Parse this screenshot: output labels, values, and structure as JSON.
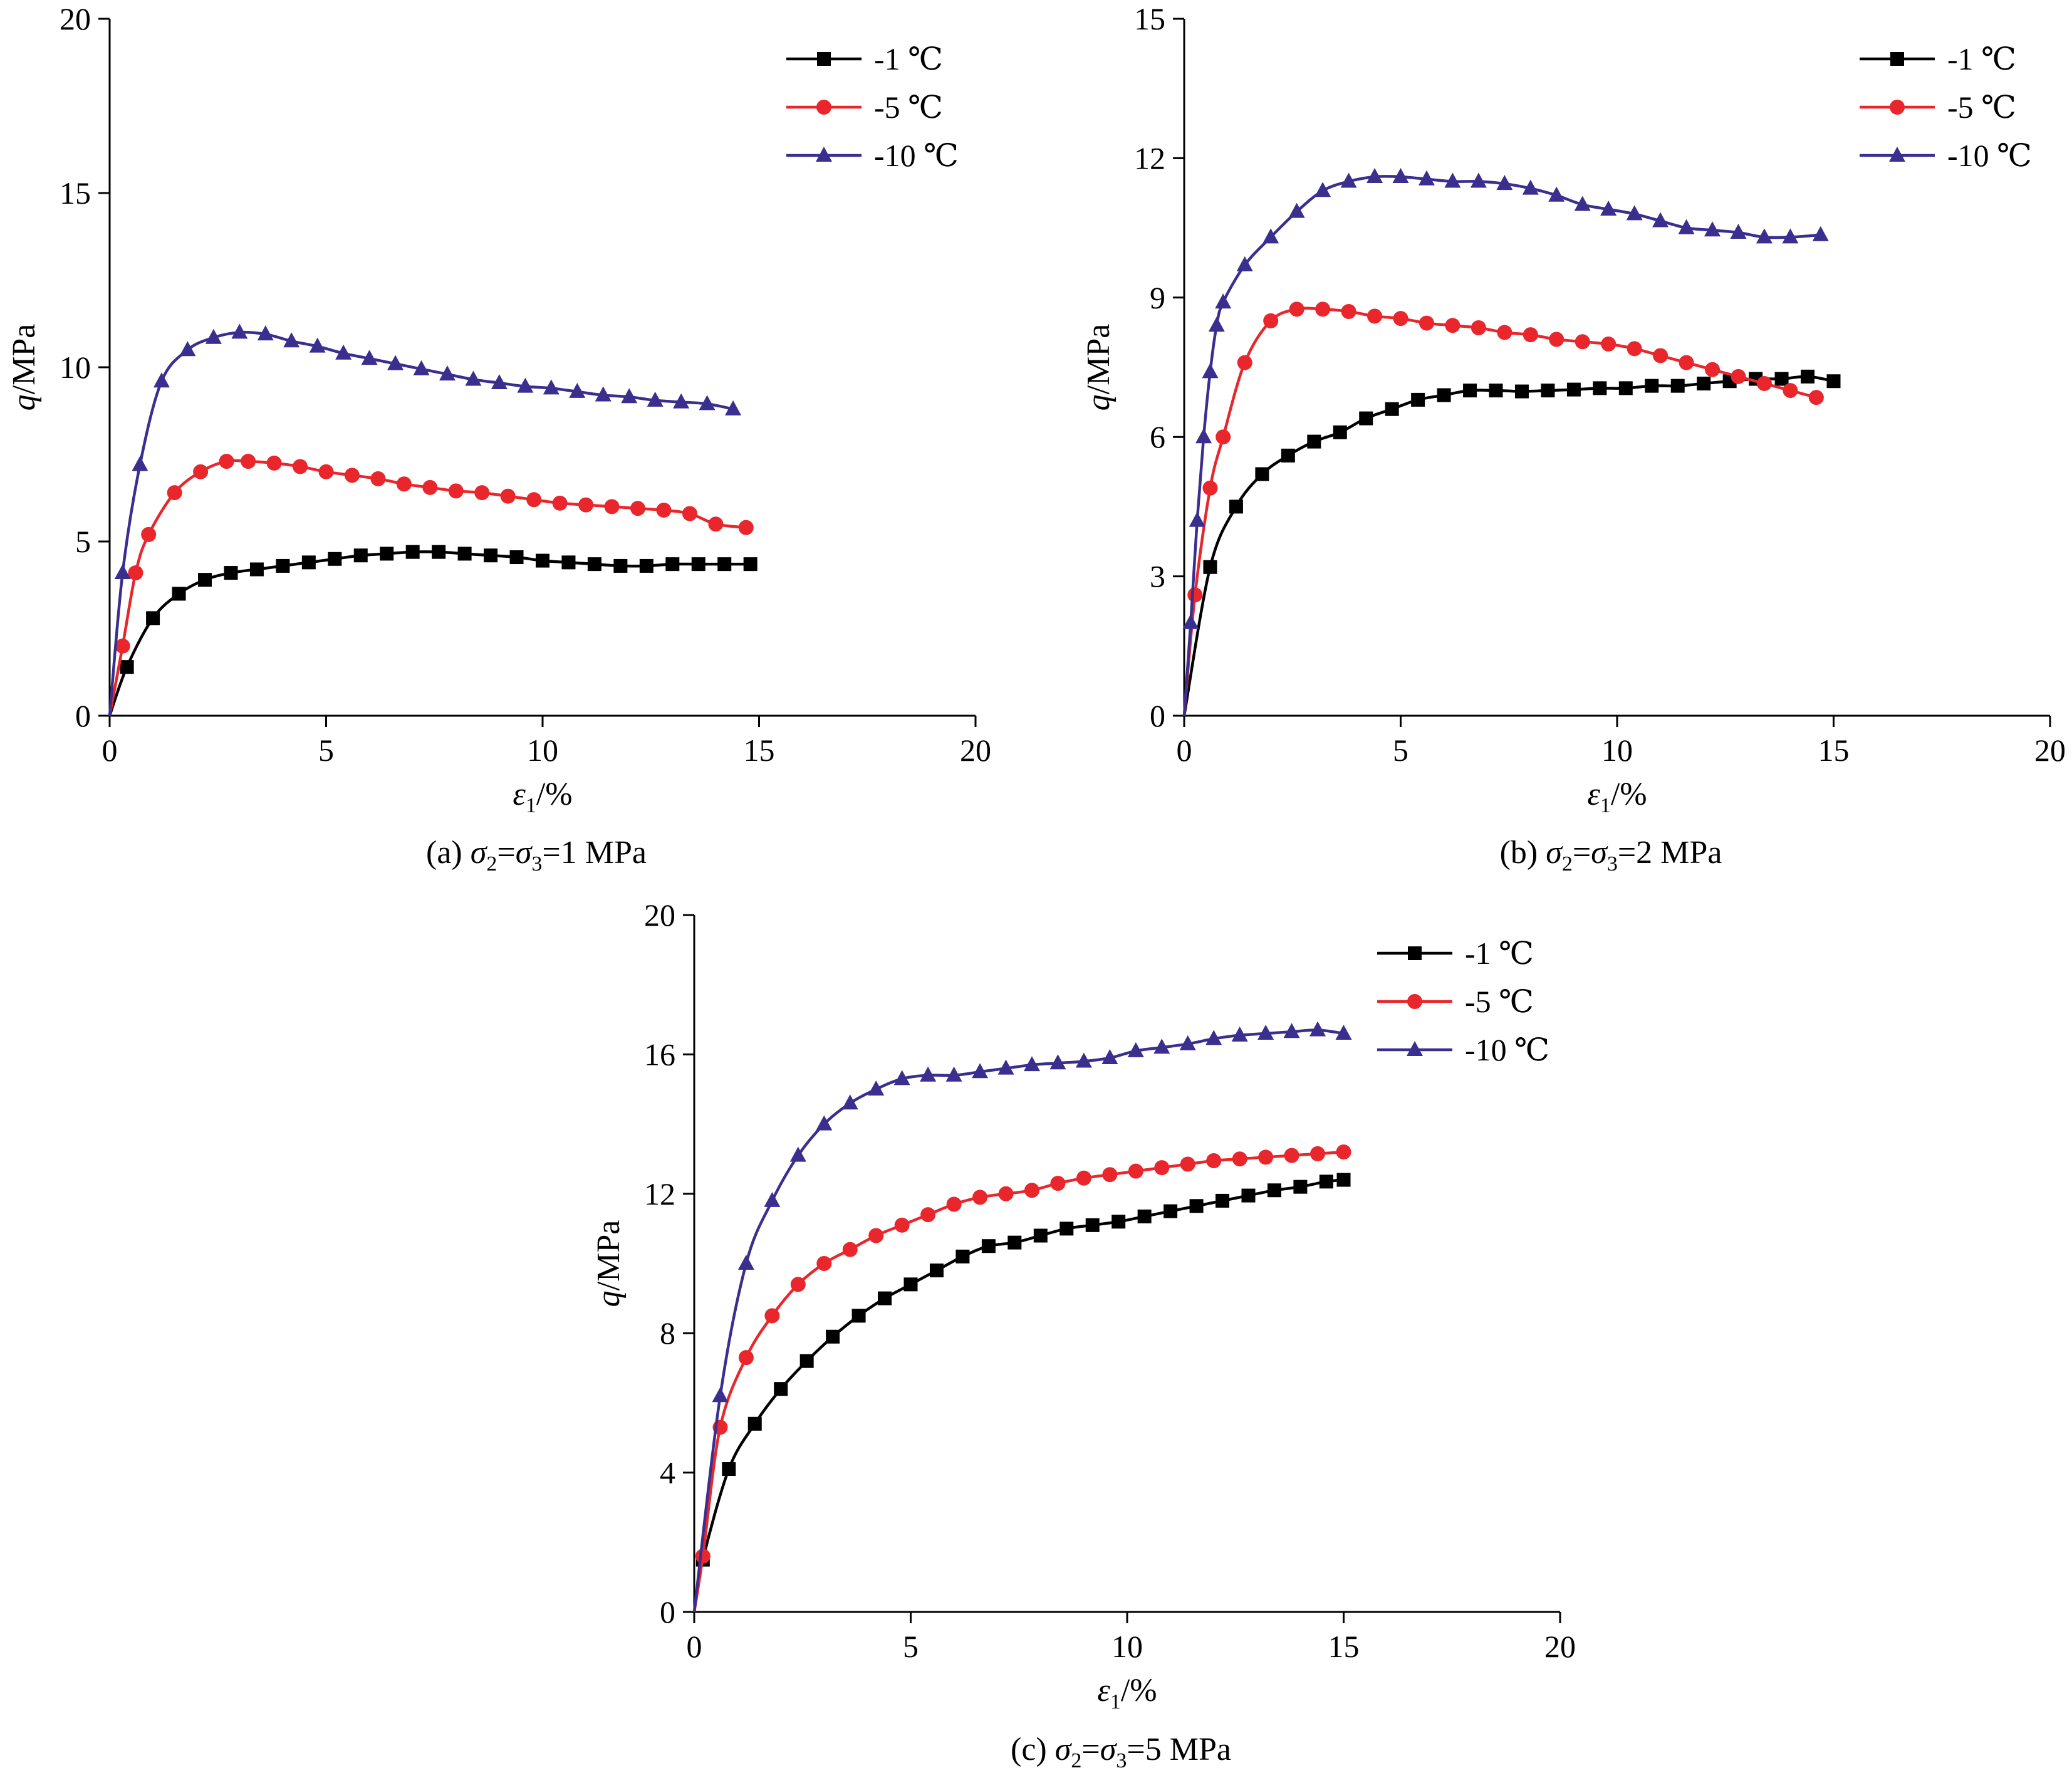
{
  "chart_data": [
    {
      "type": "line",
      "caption": {
        "prefix": "(a) ",
        "s2": "σ",
        "s2sub": "2",
        "eq1": "=",
        "s3": "σ",
        "s3sub": "3",
        "tail": "=1 MPa"
      },
      "xlabel": {
        "sym": "ε",
        "sub": "1",
        "unit": "/%"
      },
      "ylabel": {
        "sym": "q",
        "unit": "/MPa"
      },
      "xlim": [
        0,
        20
      ],
      "ylim": [
        0,
        20
      ],
      "xticks": [
        0,
        5,
        10,
        15,
        20
      ],
      "yticks": [
        0,
        5,
        10,
        15,
        20
      ],
      "legend_position": "top-right",
      "series": [
        {
          "name": "-1 ℃",
          "color": "#000000",
          "marker": "square",
          "x": [
            0,
            0.4,
            1,
            1.6,
            2.2,
            2.8,
            3.4,
            4,
            4.6,
            5.2,
            5.8,
            6.4,
            7,
            7.6,
            8.2,
            8.8,
            9.4,
            10,
            10.6,
            11.2,
            11.8,
            12.4,
            13,
            13.6,
            14.2,
            14.8
          ],
          "y": [
            0,
            1.4,
            2.8,
            3.5,
            3.9,
            4.1,
            4.2,
            4.3,
            4.4,
            4.5,
            4.6,
            4.65,
            4.7,
            4.7,
            4.65,
            4.6,
            4.55,
            4.45,
            4.4,
            4.35,
            4.3,
            4.3,
            4.35,
            4.35,
            4.35,
            4.35
          ]
        },
        {
          "name": "-5 ℃",
          "color": "#e8262b",
          "marker": "circle",
          "x": [
            0,
            0.3,
            0.6,
            0.9,
            1.5,
            2.1,
            2.7,
            3.2,
            3.8,
            4.4,
            5,
            5.6,
            6.2,
            6.8,
            7.4,
            8,
            8.6,
            9.2,
            9.8,
            10.4,
            11,
            11.6,
            12.2,
            12.8,
            13.4,
            14,
            14.7
          ],
          "y": [
            0,
            2,
            4.1,
            5.2,
            6.4,
            7,
            7.3,
            7.3,
            7.25,
            7.15,
            7,
            6.9,
            6.8,
            6.65,
            6.55,
            6.45,
            6.4,
            6.3,
            6.2,
            6.1,
            6.05,
            6,
            5.95,
            5.9,
            5.8,
            5.5,
            5.4
          ]
        },
        {
          "name": "-10 ℃",
          "color": "#3a2e8f",
          "marker": "triangle",
          "x": [
            0,
            0.3,
            0.7,
            1.2,
            1.8,
            2.4,
            3,
            3.6,
            4.2,
            4.8,
            5.4,
            6,
            6.6,
            7.2,
            7.8,
            8.4,
            9,
            9.6,
            10.2,
            10.8,
            11.4,
            12,
            12.6,
            13.2,
            13.8,
            14.4
          ],
          "y": [
            0,
            4.1,
            7.2,
            9.6,
            10.5,
            10.85,
            11,
            10.95,
            10.75,
            10.6,
            10.4,
            10.25,
            10.1,
            9.95,
            9.8,
            9.65,
            9.55,
            9.45,
            9.4,
            9.3,
            9.2,
            9.15,
            9.05,
            9,
            8.95,
            8.8
          ]
        }
      ]
    },
    {
      "type": "line",
      "caption": {
        "prefix": "(b) ",
        "s2": "σ",
        "s2sub": "2",
        "eq1": "=",
        "s3": "σ",
        "s3sub": "3",
        "tail": "=2 MPa"
      },
      "xlabel": {
        "sym": "ε",
        "sub": "1",
        "unit": "/%"
      },
      "ylabel": {
        "sym": "q",
        "unit": "/MPa"
      },
      "xlim": [
        0,
        20
      ],
      "ylim": [
        0,
        15
      ],
      "xticks": [
        0,
        5,
        10,
        15,
        20
      ],
      "yticks": [
        0,
        3,
        6,
        9,
        12,
        15
      ],
      "legend_position": "top-right",
      "series": [
        {
          "name": "-1 ℃",
          "color": "#000000",
          "marker": "square",
          "x": [
            0,
            0.6,
            1.2,
            1.8,
            2.4,
            3,
            3.6,
            4.2,
            4.8,
            5.4,
            6,
            6.6,
            7.2,
            7.8,
            8.4,
            9,
            9.6,
            10.2,
            10.8,
            11.4,
            12,
            12.6,
            13.2,
            13.8,
            14.4,
            15
          ],
          "y": [
            0,
            3.2,
            4.5,
            5.2,
            5.6,
            5.9,
            6.1,
            6.4,
            6.6,
            6.8,
            6.9,
            7,
            7,
            6.98,
            7,
            7.02,
            7.05,
            7.05,
            7.1,
            7.1,
            7.15,
            7.2,
            7.25,
            7.25,
            7.3,
            7.2
          ]
        },
        {
          "name": "-5 ℃",
          "color": "#e8262b",
          "marker": "circle",
          "x": [
            0,
            0.25,
            0.6,
            0.9,
            1.4,
            2,
            2.6,
            3.2,
            3.8,
            4.4,
            5,
            5.6,
            6.2,
            6.8,
            7.4,
            8,
            8.6,
            9.2,
            9.8,
            10.4,
            11,
            11.6,
            12.2,
            12.8,
            13.4,
            14,
            14.6
          ],
          "y": [
            0,
            2.6,
            4.9,
            6,
            7.6,
            8.5,
            8.75,
            8.75,
            8.7,
            8.6,
            8.55,
            8.45,
            8.4,
            8.35,
            8.25,
            8.2,
            8.1,
            8.05,
            8,
            7.9,
            7.75,
            7.6,
            7.45,
            7.3,
            7.15,
            7,
            6.85
          ]
        },
        {
          "name": "-10 ℃",
          "color": "#3a2e8f",
          "marker": "triangle",
          "x": [
            0,
            0.15,
            0.3,
            0.45,
            0.6,
            0.75,
            0.9,
            1.4,
            2,
            2.6,
            3.2,
            3.8,
            4.4,
            5,
            5.6,
            6.2,
            6.8,
            7.4,
            8,
            8.6,
            9.2,
            9.8,
            10.4,
            11,
            11.6,
            12.2,
            12.8,
            13.4,
            14,
            14.7
          ],
          "y": [
            0,
            2,
            4.2,
            6,
            7.4,
            8.4,
            8.9,
            9.7,
            10.3,
            10.85,
            11.3,
            11.5,
            11.6,
            11.6,
            11.55,
            11.5,
            11.5,
            11.45,
            11.35,
            11.2,
            11,
            10.9,
            10.8,
            10.65,
            10.5,
            10.45,
            10.4,
            10.3,
            10.3,
            10.35
          ]
        }
      ]
    },
    {
      "type": "line",
      "caption": {
        "prefix": "(c) ",
        "s2": "σ",
        "s2sub": "2",
        "eq1": "=",
        "s3": "σ",
        "s3sub": "3",
        "tail": "=5 MPa"
      },
      "xlabel": {
        "sym": "ε",
        "sub": "1",
        "unit": "/%"
      },
      "ylabel": {
        "sym": "q",
        "unit": "/MPa"
      },
      "xlim": [
        0,
        20
      ],
      "ylim": [
        0,
        20
      ],
      "xticks": [
        0,
        5,
        10,
        15,
        20
      ],
      "yticks": [
        0,
        4,
        8,
        12,
        16,
        20
      ],
      "legend_position": "top-right",
      "series": [
        {
          "name": "-1 ℃",
          "color": "#000000",
          "marker": "square",
          "x": [
            0,
            0.2,
            0.8,
            1.4,
            2,
            2.6,
            3.2,
            3.8,
            4.4,
            5,
            5.6,
            6.2,
            6.8,
            7.4,
            8,
            8.6,
            9.2,
            9.8,
            10.4,
            11,
            11.6,
            12.2,
            12.8,
            13.4,
            14,
            14.6,
            15
          ],
          "y": [
            0,
            1.5,
            4.1,
            5.4,
            6.4,
            7.2,
            7.9,
            8.5,
            9,
            9.4,
            9.8,
            10.2,
            10.5,
            10.6,
            10.8,
            11,
            11.1,
            11.2,
            11.35,
            11.5,
            11.65,
            11.8,
            11.95,
            12.1,
            12.2,
            12.35,
            12.4
          ]
        },
        {
          "name": "-5 ℃",
          "color": "#e8262b",
          "marker": "circle",
          "x": [
            0,
            0.2,
            0.6,
            1.2,
            1.8,
            2.4,
            3,
            3.6,
            4.2,
            4.8,
            5.4,
            6,
            6.6,
            7.2,
            7.8,
            8.4,
            9,
            9.6,
            10.2,
            10.8,
            11.4,
            12,
            12.6,
            13.2,
            13.8,
            14.4,
            15
          ],
          "y": [
            0,
            1.6,
            5.3,
            7.3,
            8.5,
            9.4,
            10,
            10.4,
            10.8,
            11.1,
            11.4,
            11.7,
            11.9,
            12,
            12.1,
            12.3,
            12.45,
            12.55,
            12.65,
            12.75,
            12.85,
            12.95,
            13,
            13.05,
            13.1,
            13.15,
            13.2
          ]
        },
        {
          "name": "-10 ℃",
          "color": "#3a2e8f",
          "marker": "triangle",
          "x": [
            0,
            0.6,
            1.2,
            1.8,
            2.4,
            3,
            3.6,
            4.2,
            4.8,
            5.4,
            6,
            6.6,
            7.2,
            7.8,
            8.4,
            9,
            9.6,
            10.2,
            10.8,
            11.4,
            12,
            12.6,
            13.2,
            13.8,
            14.4,
            15
          ],
          "y": [
            0,
            6.2,
            10,
            11.8,
            13.1,
            14,
            14.6,
            15,
            15.3,
            15.4,
            15.4,
            15.5,
            15.6,
            15.7,
            15.75,
            15.8,
            15.9,
            16.1,
            16.2,
            16.3,
            16.45,
            16.55,
            16.6,
            16.65,
            16.7,
            16.6
          ]
        }
      ]
    }
  ]
}
